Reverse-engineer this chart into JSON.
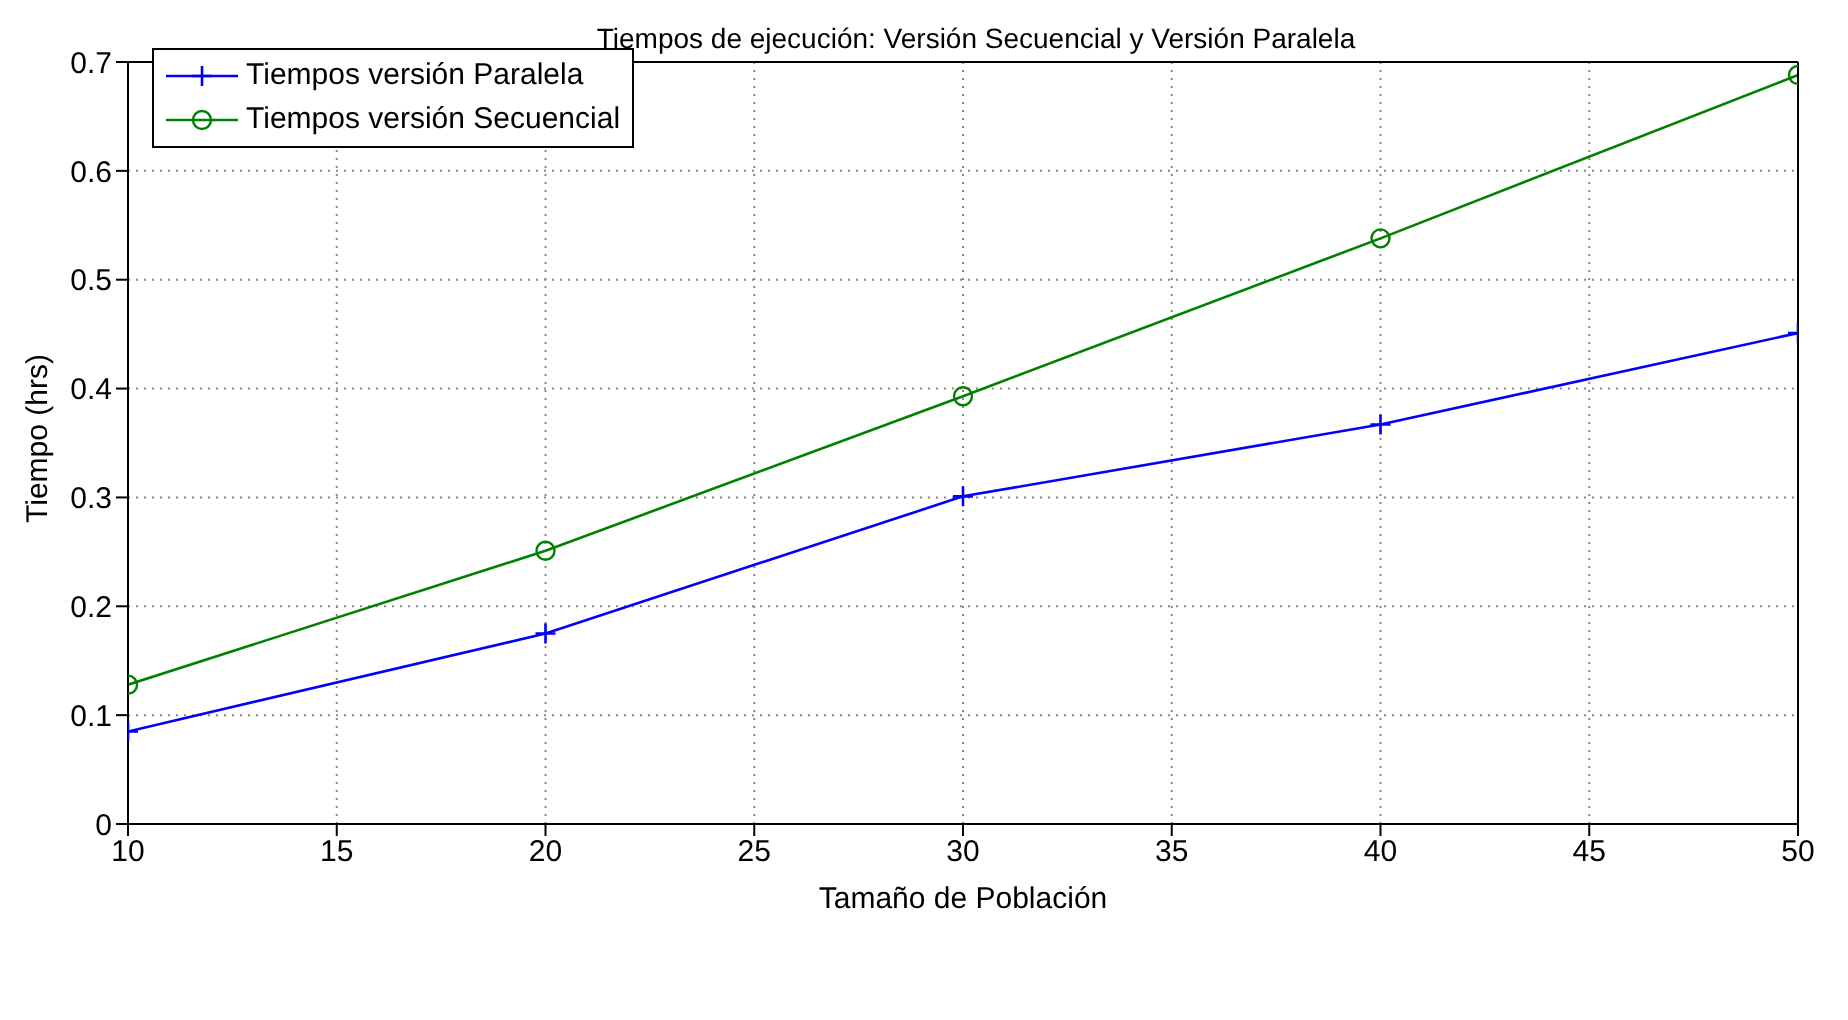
{
  "chart_data": {
    "type": "line",
    "title": "Tiempos de ejecución: Versión Secuencial y Versión Paralela",
    "xlabel": "Tamaño de Población",
    "ylabel": "Tiempo (hrs)",
    "x": [
      10,
      20,
      30,
      40,
      50
    ],
    "series": [
      {
        "name": "Tiempos versión Paralela",
        "color": "#0000ff",
        "marker": "cross",
        "values": [
          0.085,
          0.175,
          0.301,
          0.367,
          0.451
        ]
      },
      {
        "name": "Tiempos versión Secuencial",
        "color": "#008000",
        "marker": "circle",
        "values": [
          0.128,
          0.251,
          0.393,
          0.538,
          0.688
        ]
      }
    ],
    "xlim": [
      10,
      50
    ],
    "xticks": [
      10,
      15,
      20,
      25,
      30,
      35,
      40,
      45,
      50
    ],
    "ylim": [
      0,
      0.7
    ],
    "yticks": [
      0,
      0.1,
      0.2,
      0.3,
      0.4,
      0.5,
      0.6,
      0.7
    ],
    "grid": true,
    "legend": "top left",
    "line_style": "solid"
  }
}
